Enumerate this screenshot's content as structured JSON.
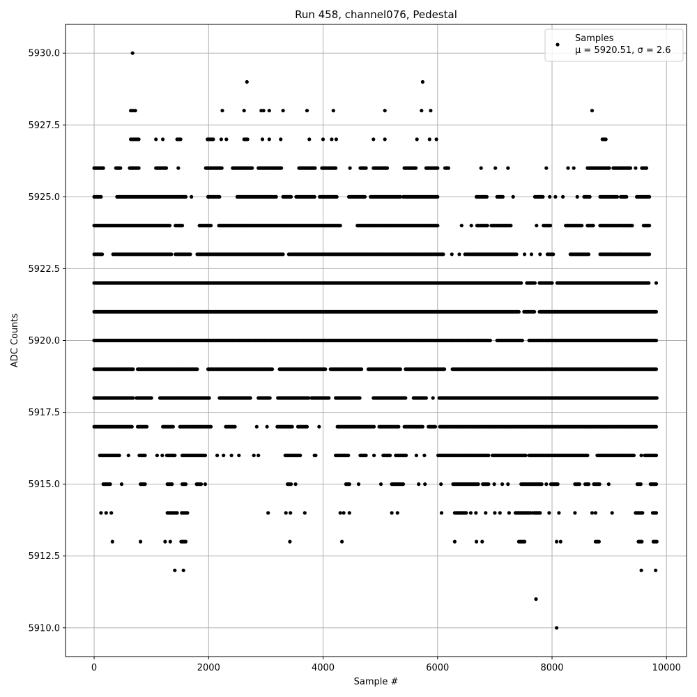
{
  "chart_data": {
    "type": "scatter",
    "title": "Run 458, channel076, Pedestal",
    "xlabel": "Sample #",
    "ylabel": "ADC Counts",
    "xlim": [
      -500,
      10350
    ],
    "ylim": [
      5909,
      5931
    ],
    "xticks": [
      0,
      2000,
      4000,
      6000,
      8000,
      10000
    ],
    "xtick_labels": [
      "0",
      "2000",
      "4000",
      "6000",
      "8000",
      "10000"
    ],
    "yticks": [
      5910.0,
      5912.5,
      5915.0,
      5917.5,
      5920.0,
      5922.5,
      5925.0,
      5927.5,
      5930.0
    ],
    "ytick_labels": [
      "5910.0",
      "5912.5",
      "5915.0",
      "5917.5",
      "5920.0",
      "5922.5",
      "5925.0",
      "5927.5",
      "5930.0"
    ],
    "grid": true,
    "legend_position": "top-right",
    "legend": {
      "series_label": "Samples",
      "stats_label": "μ = 5920.51, σ = 2.6"
    },
    "marker_color": "#000000",
    "series": [
      {
        "name": "Samples",
        "bands": [
          {
            "y": 5930,
            "x": [
              672
            ]
          },
          {
            "y": 5929,
            "x": [
              2670,
              5740
            ]
          },
          {
            "y": 5928,
            "x": [
              640,
              680,
              720,
              2240,
              2620,
              2920,
              2960,
              3060,
              3300,
              3720,
              4180,
              5080,
              5720,
              5880,
              8700
            ]
          },
          {
            "y": 5927,
            "x": [
              [
                640,
                780
              ],
              1080,
              1200,
              [
                1450,
                1520
              ],
              [
                1980,
                2080
              ],
              2220,
              2310,
              [
                2620,
                2680
              ],
              2940,
              3060,
              3260,
              3760,
              4000,
              4150,
              4230,
              4880,
              5080,
              5640,
              5860,
              5980,
              [
                8880,
                8940
              ]
            ]
          },
          {
            "y": 5926,
            "x": [
              [
                0,
                160
              ],
              [
                380,
                470
              ],
              [
                620,
                780
              ],
              [
                1080,
                1270
              ],
              1470,
              [
                1950,
                2240
              ],
              [
                2420,
                2770
              ],
              [
                2870,
                3270
              ],
              [
                3580,
                3870
              ],
              [
                3980,
                4220
              ],
              4470,
              [
                4650,
                4760
              ],
              [
                4880,
                5120
              ],
              [
                5420,
                5620
              ],
              [
                5800,
                6000
              ],
              [
                6130,
                6190
              ],
              6760,
              7010,
              7230,
              7900,
              8280,
              8380,
              [
                8620,
                9000
              ],
              [
                9070,
                9380
              ],
              9460,
              [
                9570,
                9650
              ]
            ]
          },
          {
            "y": 5925,
            "x": [
              [
                0,
                120
              ],
              [
                400,
                620
              ],
              [
                640,
                1600
              ],
              1700,
              [
                1990,
                2200
              ],
              [
                2500,
                3180
              ],
              [
                3300,
                3450
              ],
              [
                3530,
                3860
              ],
              [
                3940,
                4240
              ],
              [
                4450,
                4740
              ],
              [
                4830,
                5360
              ],
              [
                5400,
                6000
              ],
              [
                6680,
                6860
              ],
              [
                7040,
                7150
              ],
              7320,
              [
                7700,
                7850
              ],
              7960,
              8060,
              8190,
              8440,
              [
                8560,
                8660
              ],
              [
                8840,
                9150
              ],
              [
                9200,
                9300
              ],
              [
                9480,
                9700
              ]
            ]
          },
          {
            "y": 5924,
            "x": [
              [
                0,
                1320
              ],
              [
                1420,
                1550
              ],
              [
                1840,
                2050
              ],
              [
                2180,
                4300
              ],
              [
                4600,
                6000
              ],
              6420,
              6590,
              [
                6690,
                6870
              ],
              [
                6940,
                7280
              ],
              7730,
              [
                7850,
                7970
              ],
              [
                8240,
                8520
              ],
              [
                8620,
                8720
              ],
              [
                8840,
                9400
              ],
              [
                9600,
                9700
              ]
            ]
          },
          {
            "y": 5923,
            "x": [
              [
                0,
                140
              ],
              [
                330,
                1350
              ],
              [
                1420,
                1680
              ],
              [
                1800,
                3300
              ],
              [
                3400,
                6100
              ],
              6250,
              6380,
              [
                6480,
                7390
              ],
              7520,
              7640,
              7790,
              [
                7920,
                8030
              ],
              [
                8320,
                8640
              ],
              [
                8840,
                9700
              ]
            ]
          },
          {
            "y": 5922,
            "x": [
              [
                0,
                7460
              ],
              [
                7560,
                7700
              ],
              [
                7780,
                8000
              ],
              [
                8090,
                9700
              ],
              9820
            ]
          },
          {
            "y": 5921,
            "x": [
              [
                0,
                7430
              ],
              [
                7510,
                7700
              ],
              [
                7780,
                9830
              ]
            ]
          },
          {
            "y": 5920,
            "x": [
              [
                0,
                6930
              ],
              [
                7040,
                7480
              ],
              [
                7600,
                9830
              ]
            ]
          },
          {
            "y": 5919,
            "x": [
              [
                0,
                690
              ],
              [
                760,
                1810
              ],
              [
                1990,
                3120
              ],
              [
                3240,
                4040
              ],
              [
                4130,
                4680
              ],
              [
                4790,
                5360
              ],
              [
                5440,
                6120
              ],
              [
                6260,
                9830
              ]
            ]
          },
          {
            "y": 5918,
            "x": [
              [
                0,
                690
              ],
              [
                740,
                1010
              ],
              [
                1150,
                2020
              ],
              [
                2190,
                2740
              ],
              [
                2870,
                3070
              ],
              [
                3210,
                3750
              ],
              [
                3800,
                4100
              ],
              [
                4220,
                4650
              ],
              [
                4880,
                5440
              ],
              [
                5580,
                5810
              ],
              5920,
              [
                6030,
                9830
              ]
            ]
          },
          {
            "y": 5917,
            "x": [
              [
                0,
                660
              ],
              [
                760,
                920
              ],
              [
                1200,
                1380
              ],
              [
                1500,
                2050
              ],
              [
                2300,
                2460
              ],
              2840,
              3020,
              [
                3200,
                3470
              ],
              [
                3560,
                3730
              ],
              3930,
              [
                4250,
                4900
              ],
              [
                4980,
                5330
              ],
              [
                5420,
                5740
              ],
              [
                5840,
                5970
              ],
              [
                6040,
                9830
              ]
            ]
          },
          {
            "y": 5916,
            "x": [
              [
                100,
                440
              ],
              600,
              [
                790,
                900
              ],
              1100,
              1190,
              [
                1270,
                1420
              ],
              [
                1540,
                1940
              ],
              2150,
              2260,
              2400,
              2530,
              2790,
              2870,
              [
                3340,
                3600
              ],
              [
                3850,
                3880
              ],
              [
                4220,
                4440
              ],
              [
                4650,
                4760
              ],
              4890,
              [
                5050,
                5180
              ],
              [
                5270,
                5450
              ],
              5630,
              5770,
              [
                6010,
                6900
              ],
              [
                6960,
                7540
              ],
              [
                7600,
                8630
              ],
              [
                8790,
                9430
              ],
              9560,
              [
                9620,
                9830
              ]
            ]
          },
          {
            "y": 5915,
            "x": [
              [
                160,
                280
              ],
              480,
              [
                810,
                890
              ],
              [
                1280,
                1370
              ],
              [
                1540,
                1610
              ],
              [
                1790,
                1870
              ],
              1940,
              [
                3380,
                3450
              ],
              3520,
              [
                4400,
                4460
              ],
              4620,
              5010,
              [
                5200,
                5400
              ],
              5670,
              5780,
              6060,
              [
                6270,
                6720
              ],
              [
                6790,
                6900
              ],
              6990,
              7130,
              7230,
              [
                7460,
                7830
              ],
              7900,
              [
                7980,
                8110
              ],
              [
                8400,
                8480
              ],
              [
                8580,
                8650
              ],
              [
                8730,
                8830
              ],
              8990,
              [
                9490,
                9560
              ],
              [
                9720,
                9830
              ]
            ]
          },
          {
            "y": 5914,
            "x": [
              120,
              210,
              300,
              [
                1280,
                1380
              ],
              [
                1410,
                1460
              ],
              [
                1530,
                1640
              ],
              3040,
              3350,
              3430,
              3680,
              4300,
              4360,
              4460,
              5200,
              5300,
              6070,
              [
                6300,
                6500
              ],
              6580,
              6670,
              6840,
              7000,
              7090,
              7250,
              [
                7360,
                7620
              ],
              7660,
              [
                7690,
                7800
              ],
              7950,
              8120,
              8400,
              8700,
              8760,
              9050,
              [
                9460,
                9580
              ],
              [
                9760,
                9830
              ]
            ]
          },
          {
            "y": 5913,
            "x": [
              320,
              810,
              1240,
              1330,
              [
                1520,
                1600
              ],
              3420,
              4330,
              6300,
              6680,
              6780,
              [
                7420,
                7520
              ],
              8080,
              8150,
              [
                8760,
                8820
              ],
              [
                9510,
                9570
              ],
              [
                9770,
                9830
              ]
            ]
          },
          {
            "y": 5912,
            "x": [
              1410,
              1560,
              9560,
              9810
            ]
          },
          {
            "y": 5911,
            "x": [
              7720
            ]
          },
          {
            "y": 5910,
            "x": [
              8080
            ]
          }
        ]
      }
    ]
  }
}
